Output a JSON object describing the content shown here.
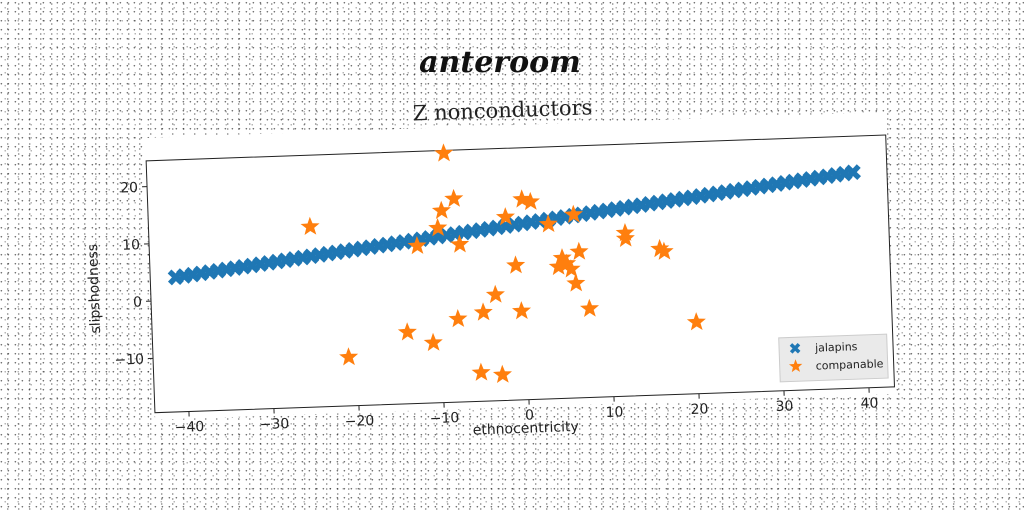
{
  "banner": "anteroom",
  "chart_data": {
    "type": "scatter",
    "title": "Z nonconductors",
    "xlabel": "ethnocentricity",
    "ylabel": "slipshodness",
    "xlim": [
      -44,
      43
    ],
    "ylim": [
      -19.5,
      24.5
    ],
    "xticks": [
      -40,
      -30,
      -20,
      -10,
      0,
      10,
      20,
      30,
      40
    ],
    "yticks": [
      -10,
      0,
      10,
      20
    ],
    "grid": false,
    "legend_position": "bottom-right",
    "series": [
      {
        "name": "jalapins",
        "marker": "x",
        "color": "#1f77b4",
        "line": {
          "x_start": -41,
          "x_end": 39,
          "y_start": 4,
          "y_end": 18.2,
          "count": 81
        }
      },
      {
        "name": "companable",
        "marker": "star",
        "color": "#ff7f0e",
        "points": [
          [
            -25,
            12
          ],
          [
            -21,
            -11
          ],
          [
            -14,
            -7
          ],
          [
            -12.5,
            8
          ],
          [
            -11,
            -9
          ],
          [
            -10,
            11
          ],
          [
            -9.5,
            14
          ],
          [
            -8,
            16
          ],
          [
            -8,
            -5
          ],
          [
            -7.5,
            8
          ],
          [
            -9,
            24
          ],
          [
            -5.5,
            -14.5
          ],
          [
            -5,
            -4
          ],
          [
            -3.5,
            -1
          ],
          [
            -3,
            -15
          ],
          [
            -2,
            12.5
          ],
          [
            -1,
            4
          ],
          [
            -0.5,
            -4
          ],
          [
            0,
            15.5
          ],
          [
            1,
            15
          ],
          [
            3,
            11
          ],
          [
            4,
            3.5
          ],
          [
            4.5,
            5
          ],
          [
            5,
            4
          ],
          [
            5.5,
            3
          ],
          [
            6,
            12.5
          ],
          [
            6,
            0.5
          ],
          [
            6.5,
            6
          ],
          [
            7.5,
            -4
          ],
          [
            12,
            8
          ],
          [
            12,
            9
          ],
          [
            16,
            6
          ],
          [
            16.5,
            5.5
          ],
          [
            20,
            -7
          ]
        ]
      }
    ]
  }
}
